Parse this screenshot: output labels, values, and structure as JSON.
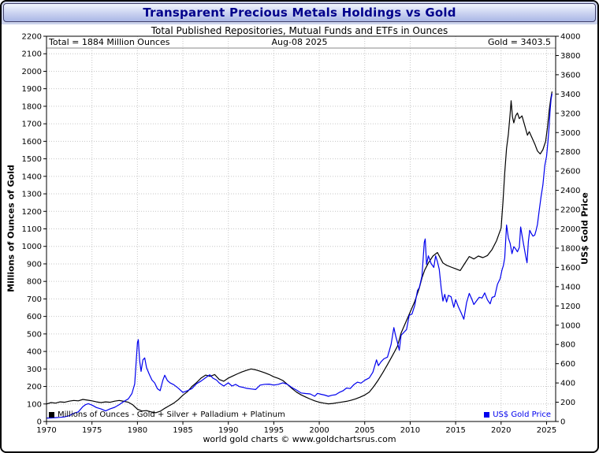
{
  "chart_data": {
    "type": "line",
    "title": "Transparent Precious Metals Holdings vs Gold",
    "subtitle": "Total Published Repositories, Mutual Funds and ETFs in Ounces",
    "caption": "world gold charts © www.goldchartsrus.com",
    "annotations": {
      "total": "Total = 1884 Million Ounces",
      "date": "Aug-08 2025",
      "gold": "Gold = 3403.5"
    },
    "x_axis": {
      "min": 1970,
      "max": 2026,
      "tick_start": 1970,
      "tick_end": 2025,
      "tick_step": 5
    },
    "y_left": {
      "title": "Millions of Ounces of Gold",
      "min": 0,
      "max": 2200,
      "tick_step": 100
    },
    "y_right": {
      "title": "US$ Gold Price",
      "min": 0,
      "max": 4000,
      "tick_step": 200
    },
    "grid": true,
    "legend_position": "bottom-inside",
    "series": [
      {
        "name": "Millions of Ounces - Gold + Silver + Palladium + Platinum",
        "axis": "left",
        "color": "#000000",
        "points": [
          [
            1970,
            100
          ],
          [
            1970.5,
            108
          ],
          [
            1971,
            105
          ],
          [
            1971.5,
            112
          ],
          [
            1972,
            110
          ],
          [
            1972.5,
            116
          ],
          [
            1973,
            120
          ],
          [
            1973.5,
            118
          ],
          [
            1974,
            126
          ],
          [
            1974.5,
            122
          ],
          [
            1975,
            118
          ],
          [
            1975.5,
            112
          ],
          [
            1976,
            108
          ],
          [
            1976.5,
            112
          ],
          [
            1977,
            110
          ],
          [
            1977.5,
            116
          ],
          [
            1978,
            120
          ],
          [
            1978.5,
            115
          ],
          [
            1979,
            110
          ],
          [
            1979.5,
            95
          ],
          [
            1980,
            70
          ],
          [
            1980.5,
            60
          ],
          [
            1981,
            62
          ],
          [
            1981.5,
            55
          ],
          [
            1982,
            50
          ],
          [
            1982.5,
            58
          ],
          [
            1983,
            75
          ],
          [
            1983.5,
            90
          ],
          [
            1984,
            105
          ],
          [
            1984.5,
            125
          ],
          [
            1985,
            150
          ],
          [
            1985.5,
            170
          ],
          [
            1986,
            200
          ],
          [
            1986.5,
            222
          ],
          [
            1987,
            248
          ],
          [
            1987.5,
            265
          ],
          [
            1988,
            258
          ],
          [
            1988.5,
            268
          ],
          [
            1989,
            240
          ],
          [
            1989.5,
            230
          ],
          [
            1990,
            248
          ],
          [
            1990.5,
            260
          ],
          [
            1991,
            272
          ],
          [
            1991.5,
            283
          ],
          [
            1992,
            292
          ],
          [
            1992.5,
            300
          ],
          [
            1993,
            295
          ],
          [
            1993.5,
            287
          ],
          [
            1994,
            278
          ],
          [
            1994.5,
            268
          ],
          [
            1995,
            255
          ],
          [
            1995.5,
            246
          ],
          [
            1996,
            234
          ],
          [
            1996.5,
            212
          ],
          [
            1997,
            188
          ],
          [
            1997.5,
            168
          ],
          [
            1998,
            152
          ],
          [
            1998.5,
            140
          ],
          [
            1999,
            128
          ],
          [
            1999.5,
            118
          ],
          [
            2000,
            110
          ],
          [
            2000.5,
            105
          ],
          [
            2001,
            101
          ],
          [
            2001.5,
            103
          ],
          [
            2002,
            107
          ],
          [
            2002.5,
            111
          ],
          [
            2003,
            115
          ],
          [
            2003.5,
            121
          ],
          [
            2004,
            129
          ],
          [
            2004.5,
            139
          ],
          [
            2005,
            151
          ],
          [
            2005.5,
            168
          ],
          [
            2006,
            200
          ],
          [
            2006.5,
            238
          ],
          [
            2007,
            280
          ],
          [
            2007.5,
            325
          ],
          [
            2008,
            372
          ],
          [
            2008.3,
            400
          ],
          [
            2008.6,
            430
          ],
          [
            2009,
            505
          ],
          [
            2009.5,
            565
          ],
          [
            2010,
            625
          ],
          [
            2010.5,
            685
          ],
          [
            2011,
            762
          ],
          [
            2011.3,
            820
          ],
          [
            2011.6,
            865
          ],
          [
            2012,
            905
          ],
          [
            2012.5,
            945
          ],
          [
            2013,
            965
          ],
          [
            2013.3,
            935
          ],
          [
            2013.6,
            905
          ],
          [
            2014,
            892
          ],
          [
            2014.5,
            882
          ],
          [
            2015,
            872
          ],
          [
            2015.5,
            862
          ],
          [
            2016,
            902
          ],
          [
            2016.5,
            942
          ],
          [
            2017,
            928
          ],
          [
            2017.5,
            945
          ],
          [
            2018,
            936
          ],
          [
            2018.5,
            948
          ],
          [
            2019,
            982
          ],
          [
            2019.5,
            1032
          ],
          [
            2020,
            1105
          ],
          [
            2020.2,
            1250
          ],
          [
            2020.4,
            1420
          ],
          [
            2020.6,
            1560
          ],
          [
            2020.8,
            1640
          ],
          [
            2021,
            1760
          ],
          [
            2021.1,
            1832
          ],
          [
            2021.25,
            1740
          ],
          [
            2021.4,
            1705
          ],
          [
            2021.6,
            1745
          ],
          [
            2021.8,
            1762
          ],
          [
            2022,
            1730
          ],
          [
            2022.3,
            1745
          ],
          [
            2022.6,
            1690
          ],
          [
            2022.9,
            1635
          ],
          [
            2023.1,
            1655
          ],
          [
            2023.4,
            1620
          ],
          [
            2023.7,
            1585
          ],
          [
            2024,
            1545
          ],
          [
            2024.3,
            1528
          ],
          [
            2024.6,
            1552
          ],
          [
            2024.9,
            1600
          ],
          [
            2025.1,
            1680
          ],
          [
            2025.3,
            1780
          ],
          [
            2025.45,
            1840
          ],
          [
            2025.6,
            1884
          ]
        ]
      },
      {
        "name": "US$ Gold Price",
        "axis": "right",
        "color": "#0000ee",
        "points": [
          [
            1970,
            36
          ],
          [
            1970.5,
            37
          ],
          [
            1971,
            40
          ],
          [
            1971.5,
            43
          ],
          [
            1972,
            48
          ],
          [
            1972.5,
            60
          ],
          [
            1973,
            85
          ],
          [
            1973.5,
            100
          ],
          [
            1974,
            155
          ],
          [
            1974.3,
            175
          ],
          [
            1974.6,
            185
          ],
          [
            1975,
            170
          ],
          [
            1975.5,
            145
          ],
          [
            1976,
            130
          ],
          [
            1976.5,
            110
          ],
          [
            1977,
            132
          ],
          [
            1977.5,
            147
          ],
          [
            1978,
            175
          ],
          [
            1978.5,
            208
          ],
          [
            1979,
            235
          ],
          [
            1979.4,
            290
          ],
          [
            1979.7,
            390
          ],
          [
            1980,
            820
          ],
          [
            1980.1,
            850
          ],
          [
            1980.25,
            630
          ],
          [
            1980.4,
            520
          ],
          [
            1980.6,
            640
          ],
          [
            1980.8,
            660
          ],
          [
            1981,
            560
          ],
          [
            1981.3,
            490
          ],
          [
            1981.6,
            430
          ],
          [
            1981.9,
            400
          ],
          [
            1982.2,
            340
          ],
          [
            1982.5,
            320
          ],
          [
            1982.8,
            430
          ],
          [
            1983,
            480
          ],
          [
            1983.3,
            425
          ],
          [
            1983.6,
            400
          ],
          [
            1984,
            382
          ],
          [
            1984.5,
            345
          ],
          [
            1985,
            302
          ],
          [
            1985.5,
            320
          ],
          [
            1986,
            342
          ],
          [
            1986.5,
            392
          ],
          [
            1987,
            420
          ],
          [
            1987.5,
            455
          ],
          [
            1987.95,
            485
          ],
          [
            1988.3,
            450
          ],
          [
            1988.7,
            430
          ],
          [
            1989,
            400
          ],
          [
            1989.5,
            368
          ],
          [
            1990,
            402
          ],
          [
            1990.4,
            368
          ],
          [
            1990.8,
            385
          ],
          [
            1991.2,
            362
          ],
          [
            1991.6,
            355
          ],
          [
            1992,
            344
          ],
          [
            1992.5,
            338
          ],
          [
            1993,
            332
          ],
          [
            1993.5,
            378
          ],
          [
            1994,
            386
          ],
          [
            1994.5,
            388
          ],
          [
            1995,
            378
          ],
          [
            1995.5,
            386
          ],
          [
            1996,
            402
          ],
          [
            1996.5,
            386
          ],
          [
            1997,
            352
          ],
          [
            1997.5,
            326
          ],
          [
            1998,
            296
          ],
          [
            1998.5,
            290
          ],
          [
            1999,
            286
          ],
          [
            1999.5,
            262
          ],
          [
            1999.8,
            292
          ],
          [
            2000.2,
            282
          ],
          [
            2000.6,
            274
          ],
          [
            2001,
            262
          ],
          [
            2001.4,
            272
          ],
          [
            2001.8,
            278
          ],
          [
            2002.2,
            302
          ],
          [
            2002.6,
            318
          ],
          [
            2003,
            348
          ],
          [
            2003.4,
            342
          ],
          [
            2003.8,
            382
          ],
          [
            2004.2,
            408
          ],
          [
            2004.6,
            398
          ],
          [
            2005,
            428
          ],
          [
            2005.5,
            452
          ],
          [
            2005.9,
            512
          ],
          [
            2006.3,
            640
          ],
          [
            2006.5,
            580
          ],
          [
            2006.8,
            620
          ],
          [
            2007.1,
            650
          ],
          [
            2007.5,
            668
          ],
          [
            2007.9,
            800
          ],
          [
            2008.2,
            975
          ],
          [
            2008.4,
            890
          ],
          [
            2008.6,
            820
          ],
          [
            2008.8,
            740
          ],
          [
            2009,
            895
          ],
          [
            2009.3,
            925
          ],
          [
            2009.6,
            955
          ],
          [
            2009.9,
            1105
          ],
          [
            2010.2,
            1115
          ],
          [
            2010.5,
            1205
          ],
          [
            2010.8,
            1360
          ],
          [
            2011,
            1390
          ],
          [
            2011.3,
            1510
          ],
          [
            2011.55,
            1860
          ],
          [
            2011.65,
            1895
          ],
          [
            2011.8,
            1630
          ],
          [
            2012,
            1720
          ],
          [
            2012.3,
            1640
          ],
          [
            2012.6,
            1600
          ],
          [
            2012.8,
            1720
          ],
          [
            2013,
            1660
          ],
          [
            2013.2,
            1580
          ],
          [
            2013.4,
            1390
          ],
          [
            2013.6,
            1250
          ],
          [
            2013.8,
            1320
          ],
          [
            2014,
            1240
          ],
          [
            2014.2,
            1310
          ],
          [
            2014.5,
            1295
          ],
          [
            2014.8,
            1185
          ],
          [
            2015,
            1265
          ],
          [
            2015.3,
            1190
          ],
          [
            2015.6,
            1130
          ],
          [
            2015.9,
            1062
          ],
          [
            2016.2,
            1235
          ],
          [
            2016.5,
            1330
          ],
          [
            2016.8,
            1265
          ],
          [
            2017,
            1215
          ],
          [
            2017.3,
            1252
          ],
          [
            2017.6,
            1290
          ],
          [
            2017.9,
            1282
          ],
          [
            2018.2,
            1335
          ],
          [
            2018.5,
            1262
          ],
          [
            2018.8,
            1222
          ],
          [
            2019,
            1288
          ],
          [
            2019.3,
            1298
          ],
          [
            2019.6,
            1425
          ],
          [
            2019.9,
            1482
          ],
          [
            2020.1,
            1572
          ],
          [
            2020.25,
            1620
          ],
          [
            2020.4,
            1700
          ],
          [
            2020.6,
            2040
          ],
          [
            2020.8,
            1905
          ],
          [
            2021,
            1848
          ],
          [
            2021.2,
            1742
          ],
          [
            2021.4,
            1815
          ],
          [
            2021.6,
            1792
          ],
          [
            2021.8,
            1762
          ],
          [
            2022,
            1808
          ],
          [
            2022.15,
            2020
          ],
          [
            2022.3,
            1935
          ],
          [
            2022.5,
            1825
          ],
          [
            2022.7,
            1720
          ],
          [
            2022.85,
            1648
          ],
          [
            2023,
            1868
          ],
          [
            2023.15,
            1985
          ],
          [
            2023.3,
            1955
          ],
          [
            2023.5,
            1925
          ],
          [
            2023.7,
            1935
          ],
          [
            2023.85,
            1985
          ],
          [
            2024,
            2045
          ],
          [
            2024.2,
            2195
          ],
          [
            2024.4,
            2335
          ],
          [
            2024.6,
            2455
          ],
          [
            2024.8,
            2655
          ],
          [
            2025,
            2755
          ],
          [
            2025.15,
            2905
          ],
          [
            2025.3,
            3085
          ],
          [
            2025.4,
            3245
          ],
          [
            2025.5,
            3345
          ],
          [
            2025.6,
            3403.5
          ]
        ]
      }
    ]
  }
}
